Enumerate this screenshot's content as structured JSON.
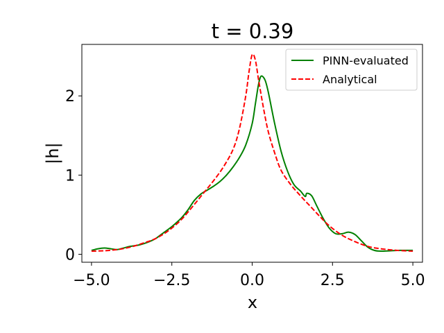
{
  "chart_data": {
    "type": "line",
    "title": "t = 0.39",
    "xlabel": "x",
    "ylabel": "|h|",
    "xlim": [
      -5.3,
      5.3
    ],
    "ylim": [
      -0.1,
      2.65
    ],
    "xticks": [
      -5.0,
      -2.5,
      0.0,
      2.5,
      5.0
    ],
    "xtick_labels": [
      "−5.0",
      "−2.5",
      "0.0",
      "2.5",
      "5.0"
    ],
    "yticks": [
      0,
      1,
      2
    ],
    "ytick_labels": [
      "0",
      "1",
      "2"
    ],
    "grid": false,
    "legend_position": "top-right",
    "series": [
      {
        "name": "PINN-evaluated",
        "color": "#008000",
        "style": "solid",
        "points": [
          [
            -5.0,
            0.05
          ],
          [
            -4.8,
            0.07
          ],
          [
            -4.6,
            0.08
          ],
          [
            -4.4,
            0.07
          ],
          [
            -4.2,
            0.06
          ],
          [
            -4.0,
            0.08
          ],
          [
            -3.8,
            0.1
          ],
          [
            -3.5,
            0.12
          ],
          [
            -3.2,
            0.16
          ],
          [
            -3.0,
            0.2
          ],
          [
            -2.8,
            0.26
          ],
          [
            -2.5,
            0.35
          ],
          [
            -2.2,
            0.46
          ],
          [
            -2.0,
            0.56
          ],
          [
            -1.8,
            0.68
          ],
          [
            -1.6,
            0.76
          ],
          [
            -1.4,
            0.81
          ],
          [
            -1.2,
            0.86
          ],
          [
            -1.0,
            0.92
          ],
          [
            -0.8,
            1.0
          ],
          [
            -0.6,
            1.1
          ],
          [
            -0.4,
            1.22
          ],
          [
            -0.2,
            1.38
          ],
          [
            0.0,
            1.65
          ],
          [
            0.1,
            1.9
          ],
          [
            0.2,
            2.15
          ],
          [
            0.28,
            2.25
          ],
          [
            0.4,
            2.2
          ],
          [
            0.5,
            2.05
          ],
          [
            0.7,
            1.65
          ],
          [
            0.9,
            1.3
          ],
          [
            1.1,
            1.05
          ],
          [
            1.3,
            0.88
          ],
          [
            1.5,
            0.8
          ],
          [
            1.65,
            0.73
          ],
          [
            1.7,
            0.77
          ],
          [
            1.85,
            0.74
          ],
          [
            2.0,
            0.62
          ],
          [
            2.2,
            0.46
          ],
          [
            2.4,
            0.33
          ],
          [
            2.6,
            0.26
          ],
          [
            2.8,
            0.26
          ],
          [
            3.0,
            0.28
          ],
          [
            3.2,
            0.25
          ],
          [
            3.4,
            0.17
          ],
          [
            3.6,
            0.09
          ],
          [
            3.8,
            0.05
          ],
          [
            4.0,
            0.04
          ],
          [
            4.3,
            0.045
          ],
          [
            4.6,
            0.05
          ],
          [
            5.0,
            0.05
          ]
        ]
      },
      {
        "name": "Analytical",
        "color": "#ff0000",
        "style": "dashed",
        "points": [
          [
            -5.0,
            0.04
          ],
          [
            -4.6,
            0.045
          ],
          [
            -4.2,
            0.06
          ],
          [
            -3.8,
            0.09
          ],
          [
            -3.4,
            0.14
          ],
          [
            -3.0,
            0.2
          ],
          [
            -2.6,
            0.3
          ],
          [
            -2.2,
            0.44
          ],
          [
            -1.8,
            0.63
          ],
          [
            -1.5,
            0.78
          ],
          [
            -1.2,
            0.93
          ],
          [
            -0.9,
            1.1
          ],
          [
            -0.6,
            1.32
          ],
          [
            -0.4,
            1.58
          ],
          [
            -0.2,
            2.0
          ],
          [
            -0.1,
            2.3
          ],
          [
            0.0,
            2.52
          ],
          [
            0.1,
            2.45
          ],
          [
            0.2,
            2.2
          ],
          [
            0.35,
            1.85
          ],
          [
            0.5,
            1.55
          ],
          [
            0.7,
            1.28
          ],
          [
            0.9,
            1.06
          ],
          [
            1.2,
            0.88
          ],
          [
            1.5,
            0.74
          ],
          [
            1.8,
            0.61
          ],
          [
            2.1,
            0.48
          ],
          [
            2.4,
            0.36
          ],
          [
            2.8,
            0.24
          ],
          [
            3.2,
            0.16
          ],
          [
            3.6,
            0.1
          ],
          [
            4.0,
            0.07
          ],
          [
            4.5,
            0.05
          ],
          [
            5.0,
            0.04
          ]
        ]
      }
    ]
  }
}
